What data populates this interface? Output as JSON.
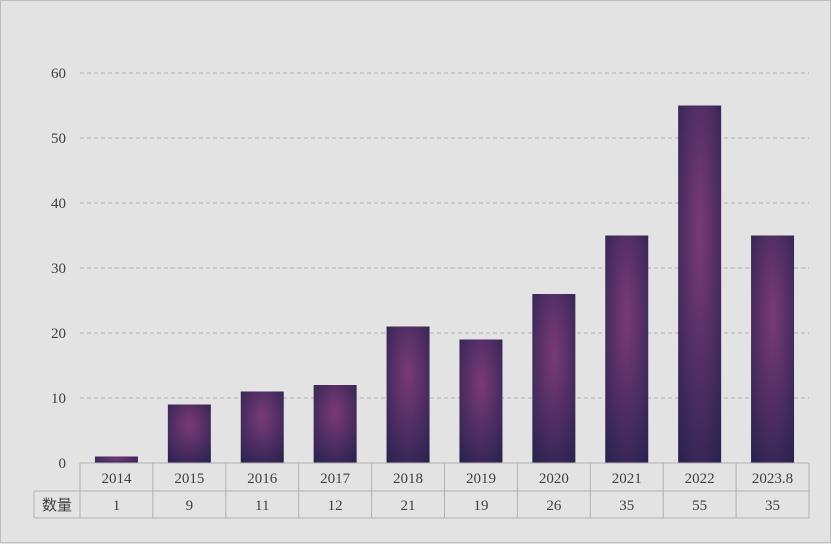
{
  "chart_data": {
    "type": "bar",
    "categories": [
      "2014",
      "2015",
      "2016",
      "2017",
      "2018",
      "2019",
      "2020",
      "2021",
      "2022",
      "2023.8"
    ],
    "series": [
      {
        "name": "数量",
        "values": [
          1,
          9,
          11,
          12,
          21,
          19,
          26,
          35,
          55,
          35
        ]
      }
    ],
    "ylim": [
      0,
      60
    ],
    "yticks": [
      0,
      10,
      20,
      30,
      40,
      50,
      60
    ],
    "grid": true,
    "data_table": true,
    "colors": {
      "bar_center": "#7a3a78",
      "bar_edge": "#2a2350",
      "grid": "#b0b0b0",
      "text": "#404040",
      "background": "#e3e3e3"
    }
  }
}
